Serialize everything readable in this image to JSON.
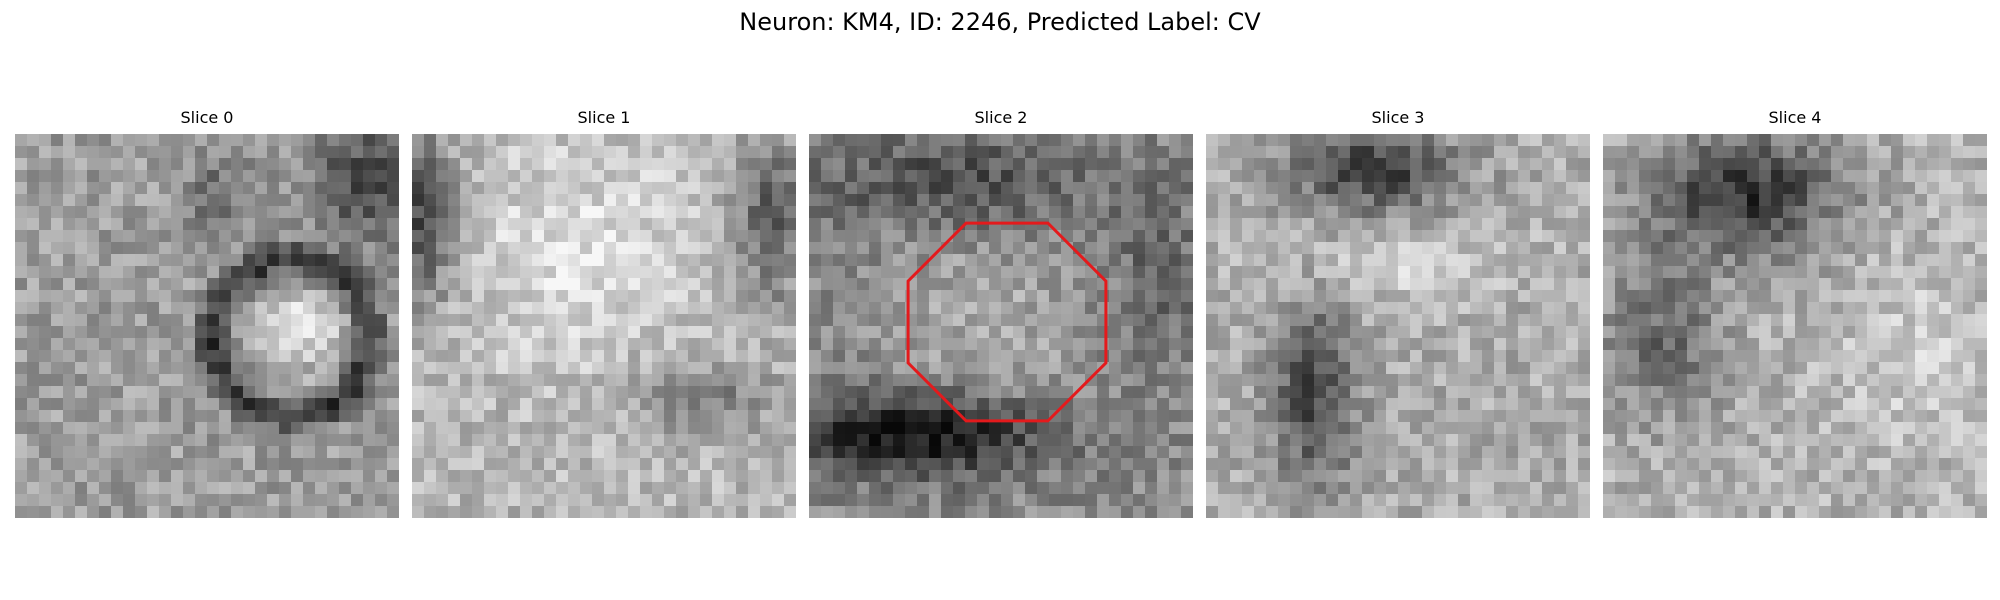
{
  "figure": {
    "title": "Neuron: KM4, ID: 2246, Predicted Label: CV"
  },
  "panels": [
    {
      "title": "Slice 0"
    },
    {
      "title": "Slice 1"
    },
    {
      "title": "Slice 2"
    },
    {
      "title": "Slice 3"
    },
    {
      "title": "Slice 4"
    }
  ],
  "overlay": {
    "panel": "Slice 2",
    "shape": "octagon",
    "color": "#e41a1c"
  },
  "colormap": "gray"
}
